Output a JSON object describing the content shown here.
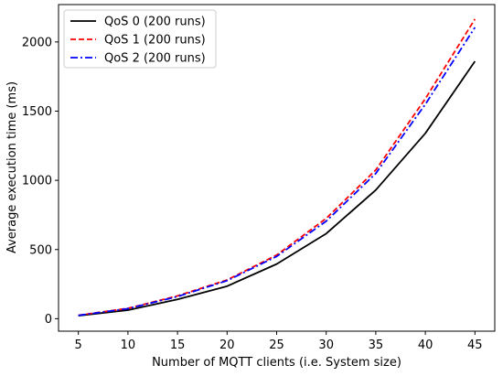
{
  "chart_data": {
    "type": "line",
    "title": "",
    "xlabel": "Number of MQTT clients (i.e. System size)",
    "ylabel": "Average execution time (ms)",
    "x": [
      5,
      10,
      15,
      20,
      25,
      30,
      35,
      40,
      45
    ],
    "x_ticks": [
      5,
      10,
      15,
      20,
      25,
      30,
      35,
      40,
      45
    ],
    "y_ticks": [
      0,
      500,
      1000,
      1500,
      2000
    ],
    "xlim": [
      3,
      47
    ],
    "ylim": [
      -90,
      2270
    ],
    "grid": false,
    "legend_position": "top-left",
    "series": [
      {
        "name": "QoS 0 (200 runs)",
        "color": "#000000",
        "dash": "solid",
        "values": [
          22,
          62,
          140,
          235,
          395,
          615,
          930,
          1340,
          1860
        ]
      },
      {
        "name": "QoS 1 (200 runs)",
        "color": "#ff0000",
        "dash": "dashed",
        "values": [
          25,
          75,
          165,
          280,
          460,
          725,
          1075,
          1590,
          2165
        ]
      },
      {
        "name": "QoS 2 (200 runs)",
        "color": "#0000ff",
        "dash": "dashdot",
        "values": [
          24,
          73,
          160,
          275,
          450,
          705,
          1050,
          1550,
          2105
        ]
      }
    ]
  }
}
